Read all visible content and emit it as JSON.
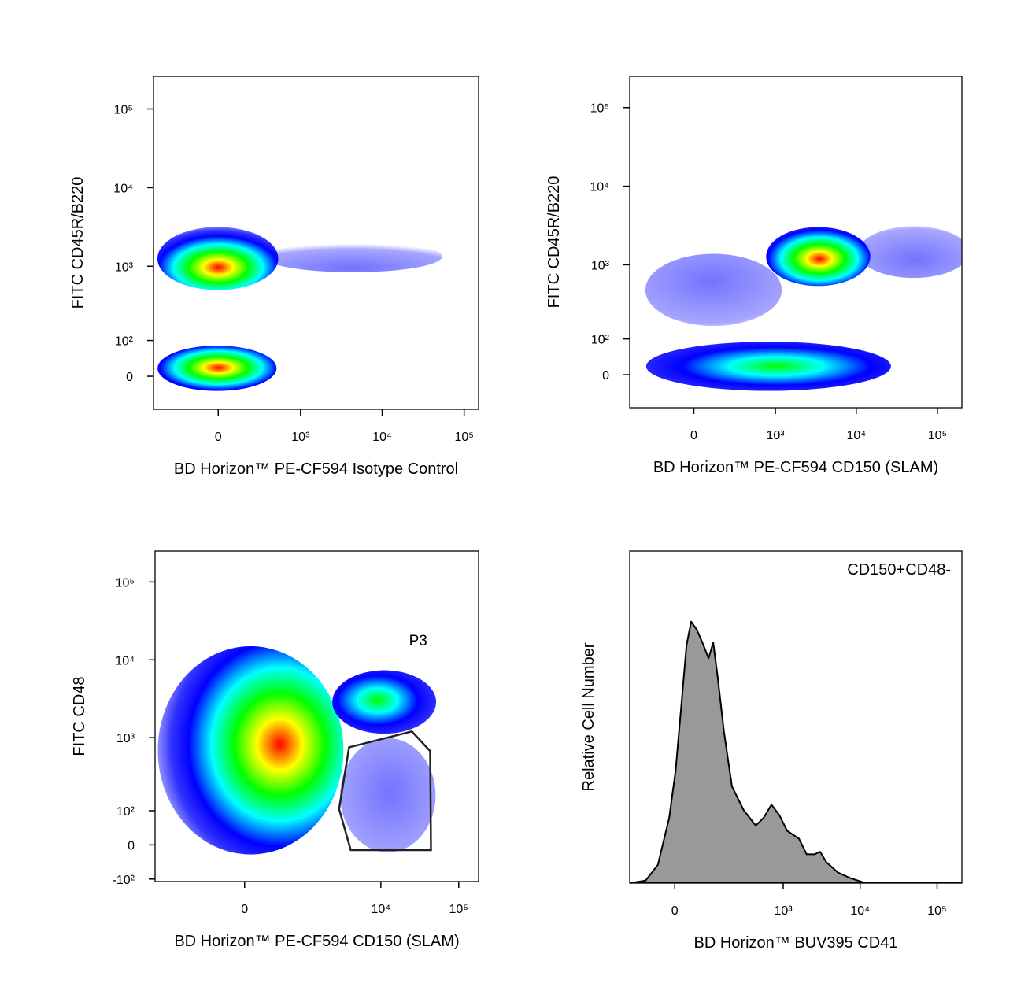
{
  "chart_data": [
    {
      "type": "density",
      "xlabel": "BD Horizon™ PE-CF594 Isotype Control",
      "ylabel": "FITC CD45R/B220",
      "xlim": [
        -600,
        150000
      ],
      "ylim": [
        -90,
        260000
      ],
      "xticks": [
        0,
        {
          "value": 1000,
          "label": "10³"
        },
        {
          "value": 10000,
          "label": "10⁴"
        },
        {
          "value": 100000,
          "label": "10⁵"
        }
      ],
      "yticks": [
        0,
        {
          "value": 100,
          "label": "10²"
        },
        {
          "value": 1000,
          "label": "10³"
        },
        {
          "value": 10000,
          "label": "10⁴"
        },
        {
          "value": 100000,
          "label": "10⁵"
        }
      ],
      "clusters": [
        {
          "x": 4300,
          "y": 1000,
          "xrange": [
            470,
            38800
          ],
          "yrange": [
            890,
            2000
          ],
          "color": "#0000ff"
        },
        {
          "x": 0,
          "y": 1000,
          "xrange": [
            -420,
            410
          ],
          "yrange": [
            560,
            2800
          ],
          "color": "#ff0000"
        },
        {
          "x": 0,
          "y": 20,
          "xrange": [
            -420,
            390
          ],
          "yrange": [
            -28,
            72
          ],
          "color": "#ff0000"
        }
      ]
    },
    {
      "type": "density",
      "xlabel": "BD Horizon™ PE-CF594 CD150 (SLAM)",
      "ylabel": "FITC CD45R/B220",
      "xlim": [
        -600,
        200000
      ],
      "ylim": [
        -90,
        250000
      ],
      "xticks": [
        0,
        {
          "value": 1000,
          "label": "10³"
        },
        {
          "value": 10000,
          "label": "10⁴"
        },
        {
          "value": 100000,
          "label": "10⁵"
        }
      ],
      "yticks": [
        0,
        {
          "value": 100,
          "label": "10²"
        },
        {
          "value": 1000,
          "label": "10³"
        },
        {
          "value": 10000,
          "label": "10⁴"
        },
        {
          "value": 100000,
          "label": "10⁵"
        }
      ],
      "clusters": [
        {
          "x": 100,
          "y": 600,
          "xrange": [
            -275,
            930
          ],
          "yrange": [
            183,
            1200
          ],
          "color": "#0000ff"
        },
        {
          "x": 52000,
          "y": 1200,
          "xrange": [
            13000,
            200000
          ],
          "yrange": [
            750,
            2800
          ],
          "color": "#0000ff"
        },
        {
          "x": 3500,
          "y": 1200,
          "xrange": [
            930,
            12300
          ],
          "yrange": [
            600,
            2700
          ],
          "color": "#ff0000"
        },
        {
          "x": 1000,
          "y": 20,
          "xrange": [
            -205,
            17000
          ],
          "yrange": [
            -31,
            79
          ],
          "color": "#00ff00"
        }
      ]
    },
    {
      "type": "density",
      "xlabel": "BD Horizon™ PE-CF594 CD150 (SLAM)",
      "ylabel": "FITC CD48",
      "xlim": [
        -2500,
        180000
      ],
      "ylim": [
        -110,
        250000
      ],
      "xticks": [
        0,
        {
          "value": 10000,
          "label": "10⁴"
        },
        {
          "value": 100000,
          "label": "10⁵"
        }
      ],
      "yticks": [
        {
          "value": -100,
          "label": "-10²"
        },
        0,
        {
          "value": 100,
          "label": "10²"
        },
        {
          "value": 1000,
          "label": "10³"
        },
        {
          "value": 10000,
          "label": "10⁴"
        },
        {
          "value": 100000,
          "label": "10⁵"
        }
      ],
      "clusters": [
        {
          "x": 13000,
          "y": 185,
          "xrange": [
            3600,
            42000
          ],
          "yrange": [
            0,
            790
          ],
          "color": "#0000ff"
        },
        {
          "x": 380,
          "y": 800,
          "xrange": [
            -1600,
            2300
          ],
          "yrange": [
            10,
            10000
          ],
          "color": "#ff0000"
        },
        {
          "x": 9300,
          "y": 3000,
          "xrange": [
            2900,
            42000
          ],
          "yrange": [
            1270,
            6500
          ],
          "color": "#00ff00"
        }
      ],
      "gate": {
        "label": "P3",
        "x": [
          3900,
          25000,
          43000,
          44000,
          4100,
          2900
        ],
        "y": [
          750,
          1200,
          670,
          -13,
          -13,
          107
        ]
      }
    },
    {
      "type": "histogram_area",
      "xlabel": "BD Horizon™ BUV395 CD41",
      "ylabel": "Relative Cell Number",
      "annotation": "CD150+CD48-",
      "xlim": [
        -140,
        210000
      ],
      "ylim": [
        0,
        127
      ],
      "xticks": [
        0,
        {
          "value": 1000,
          "label": "10³"
        },
        {
          "value": 10000,
          "label": "10⁴"
        },
        {
          "value": 100000,
          "label": "10⁵"
        }
      ],
      "x": [
        -140,
        -77,
        -41,
        -13,
        2,
        15,
        28,
        40,
        55,
        72,
        93,
        111,
        130,
        161,
        209,
        300,
        436,
        555,
        703,
        889,
        1125,
        1600,
        2020,
        2557,
        3020,
        3640,
        5180,
        7380,
        11800,
        210000
      ],
      "values": [
        0,
        1,
        7,
        25,
        43,
        67,
        91,
        100,
        97,
        92,
        86,
        92,
        79,
        58,
        37,
        28,
        22,
        25,
        30,
        26,
        20,
        17,
        11,
        11,
        12,
        8,
        4,
        2,
        0,
        0
      ],
      "color": "#999999"
    }
  ]
}
